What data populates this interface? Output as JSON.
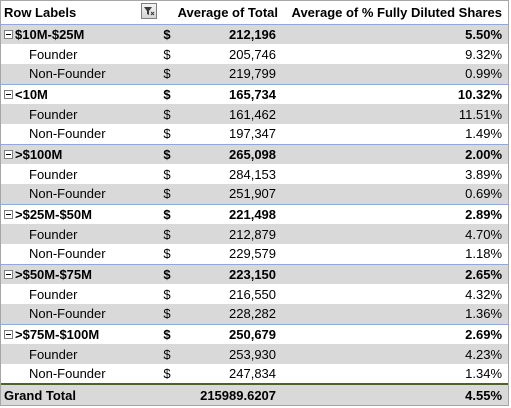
{
  "header": {
    "row_labels": "Row Labels",
    "average_total": "Average of Total",
    "average_pct": "Average of % Fully Diluted Shares"
  },
  "currency_symbol": "$",
  "groups": [
    {
      "label": "$10M-$25M",
      "total": "212,196",
      "pct": "5.50%",
      "children": [
        {
          "label": "Founder",
          "total": "205,746",
          "pct": "9.32%"
        },
        {
          "label": "Non-Founder",
          "total": "219,799",
          "pct": "0.99%"
        }
      ]
    },
    {
      "label": "<10M",
      "total": "165,734",
      "pct": "10.32%",
      "children": [
        {
          "label": "Founder",
          "total": "161,462",
          "pct": "11.51%"
        },
        {
          "label": "Non-Founder",
          "total": "197,347",
          "pct": "1.49%"
        }
      ]
    },
    {
      "label": ">$100M",
      "total": "265,098",
      "pct": "2.00%",
      "children": [
        {
          "label": "Founder",
          "total": "284,153",
          "pct": "3.89%"
        },
        {
          "label": "Non-Founder",
          "total": "251,907",
          "pct": "0.69%"
        }
      ]
    },
    {
      "label": ">$25M-$50M",
      "total": "221,498",
      "pct": "2.89%",
      "children": [
        {
          "label": "Founder",
          "total": "212,879",
          "pct": "4.70%"
        },
        {
          "label": "Non-Founder",
          "total": "229,579",
          "pct": "1.18%"
        }
      ]
    },
    {
      "label": ">$50M-$75M",
      "total": "223,150",
      "pct": "2.65%",
      "children": [
        {
          "label": "Founder",
          "total": "216,550",
          "pct": "4.32%"
        },
        {
          "label": "Non-Founder",
          "total": "228,282",
          "pct": "1.36%"
        }
      ]
    },
    {
      "label": ">$75M-$100M",
      "total": "250,679",
      "pct": "2.69%",
      "children": [
        {
          "label": "Founder",
          "total": "253,930",
          "pct": "4.23%"
        },
        {
          "label": "Non-Founder",
          "total": "247,834",
          "pct": "1.34%"
        }
      ]
    }
  ],
  "grand_total": {
    "label": "Grand Total",
    "total": "215989.6207",
    "pct": "4.55%"
  },
  "colors": {
    "shade": "#d9d9d9",
    "header_rule": "#8ea9db",
    "grand_rule": "#4f6228"
  }
}
